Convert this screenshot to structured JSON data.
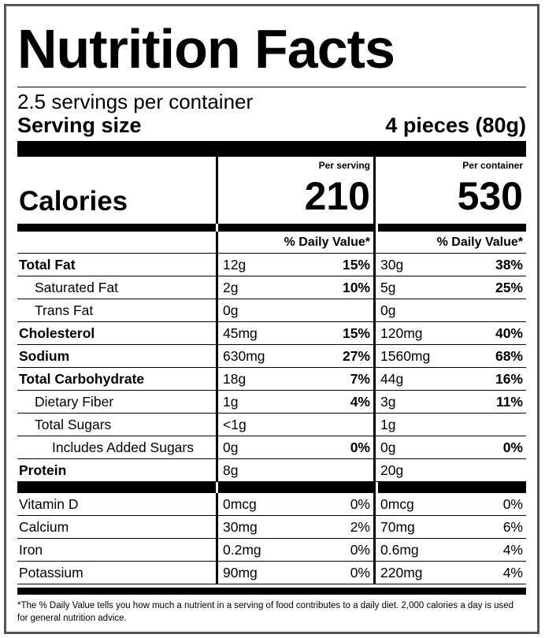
{
  "title": "Nutrition Facts",
  "servings_per_container": "2.5 servings per container",
  "serving_size_label": "Serving size",
  "serving_size_value": "4 pieces (80g)",
  "per_serving_label": "Per serving",
  "per_container_label": "Per container",
  "calories_label": "Calories",
  "calories_serving": "210",
  "calories_container": "530",
  "dv_header": "% Daily Value*",
  "nutrients": [
    {
      "name": "Total Fat",
      "amt1": "12g",
      "dv1": "15%",
      "amt2": "30g",
      "dv2": "38%"
    },
    {
      "name": "Saturated Fat",
      "amt1": "2g",
      "dv1": "10%",
      "amt2": "5g",
      "dv2": "25%"
    },
    {
      "name": "Trans Fat",
      "amt1": "0g",
      "dv1": "",
      "amt2": "0g",
      "dv2": ""
    },
    {
      "name": "Cholesterol",
      "amt1": "45mg",
      "dv1": "15%",
      "amt2": "120mg",
      "dv2": "40%"
    },
    {
      "name": "Sodium",
      "amt1": "630mg",
      "dv1": "27%",
      "amt2": "1560mg",
      "dv2": "68%"
    },
    {
      "name": "Total Carbohydrate",
      "amt1": "18g",
      "dv1": "7%",
      "amt2": "44g",
      "dv2": "16%"
    },
    {
      "name": "Dietary Fiber",
      "amt1": "1g",
      "dv1": "4%",
      "amt2": "3g",
      "dv2": "11%"
    },
    {
      "name": "Total Sugars",
      "amt1": "<1g",
      "dv1": "",
      "amt2": "1g",
      "dv2": ""
    },
    {
      "name": "Includes Added Sugars",
      "amt1": "0g",
      "dv1": "0%",
      "amt2": "0g",
      "dv2": "0%"
    },
    {
      "name": "Protein",
      "amt1": "8g",
      "dv1": "",
      "amt2": "20g",
      "dv2": ""
    }
  ],
  "vitamins": [
    {
      "name": "Vitamin D",
      "amt1": "0mcg",
      "dv1": "0%",
      "amt2": "0mcg",
      "dv2": "0%"
    },
    {
      "name": "Calcium",
      "amt1": "30mg",
      "dv1": "2%",
      "amt2": "70mg",
      "dv2": "6%"
    },
    {
      "name": "Iron",
      "amt1": "0.2mg",
      "dv1": "0%",
      "amt2": "0.6mg",
      "dv2": "4%"
    },
    {
      "name": "Potassium",
      "amt1": "90mg",
      "dv1": "0%",
      "amt2": "220mg",
      "dv2": "4%"
    }
  ],
  "footnote": "*The % Daily Value tells you how much a nutrient in a serving of food contributes to a daily diet. 2,000 calories a day is used for general nutrition advice."
}
